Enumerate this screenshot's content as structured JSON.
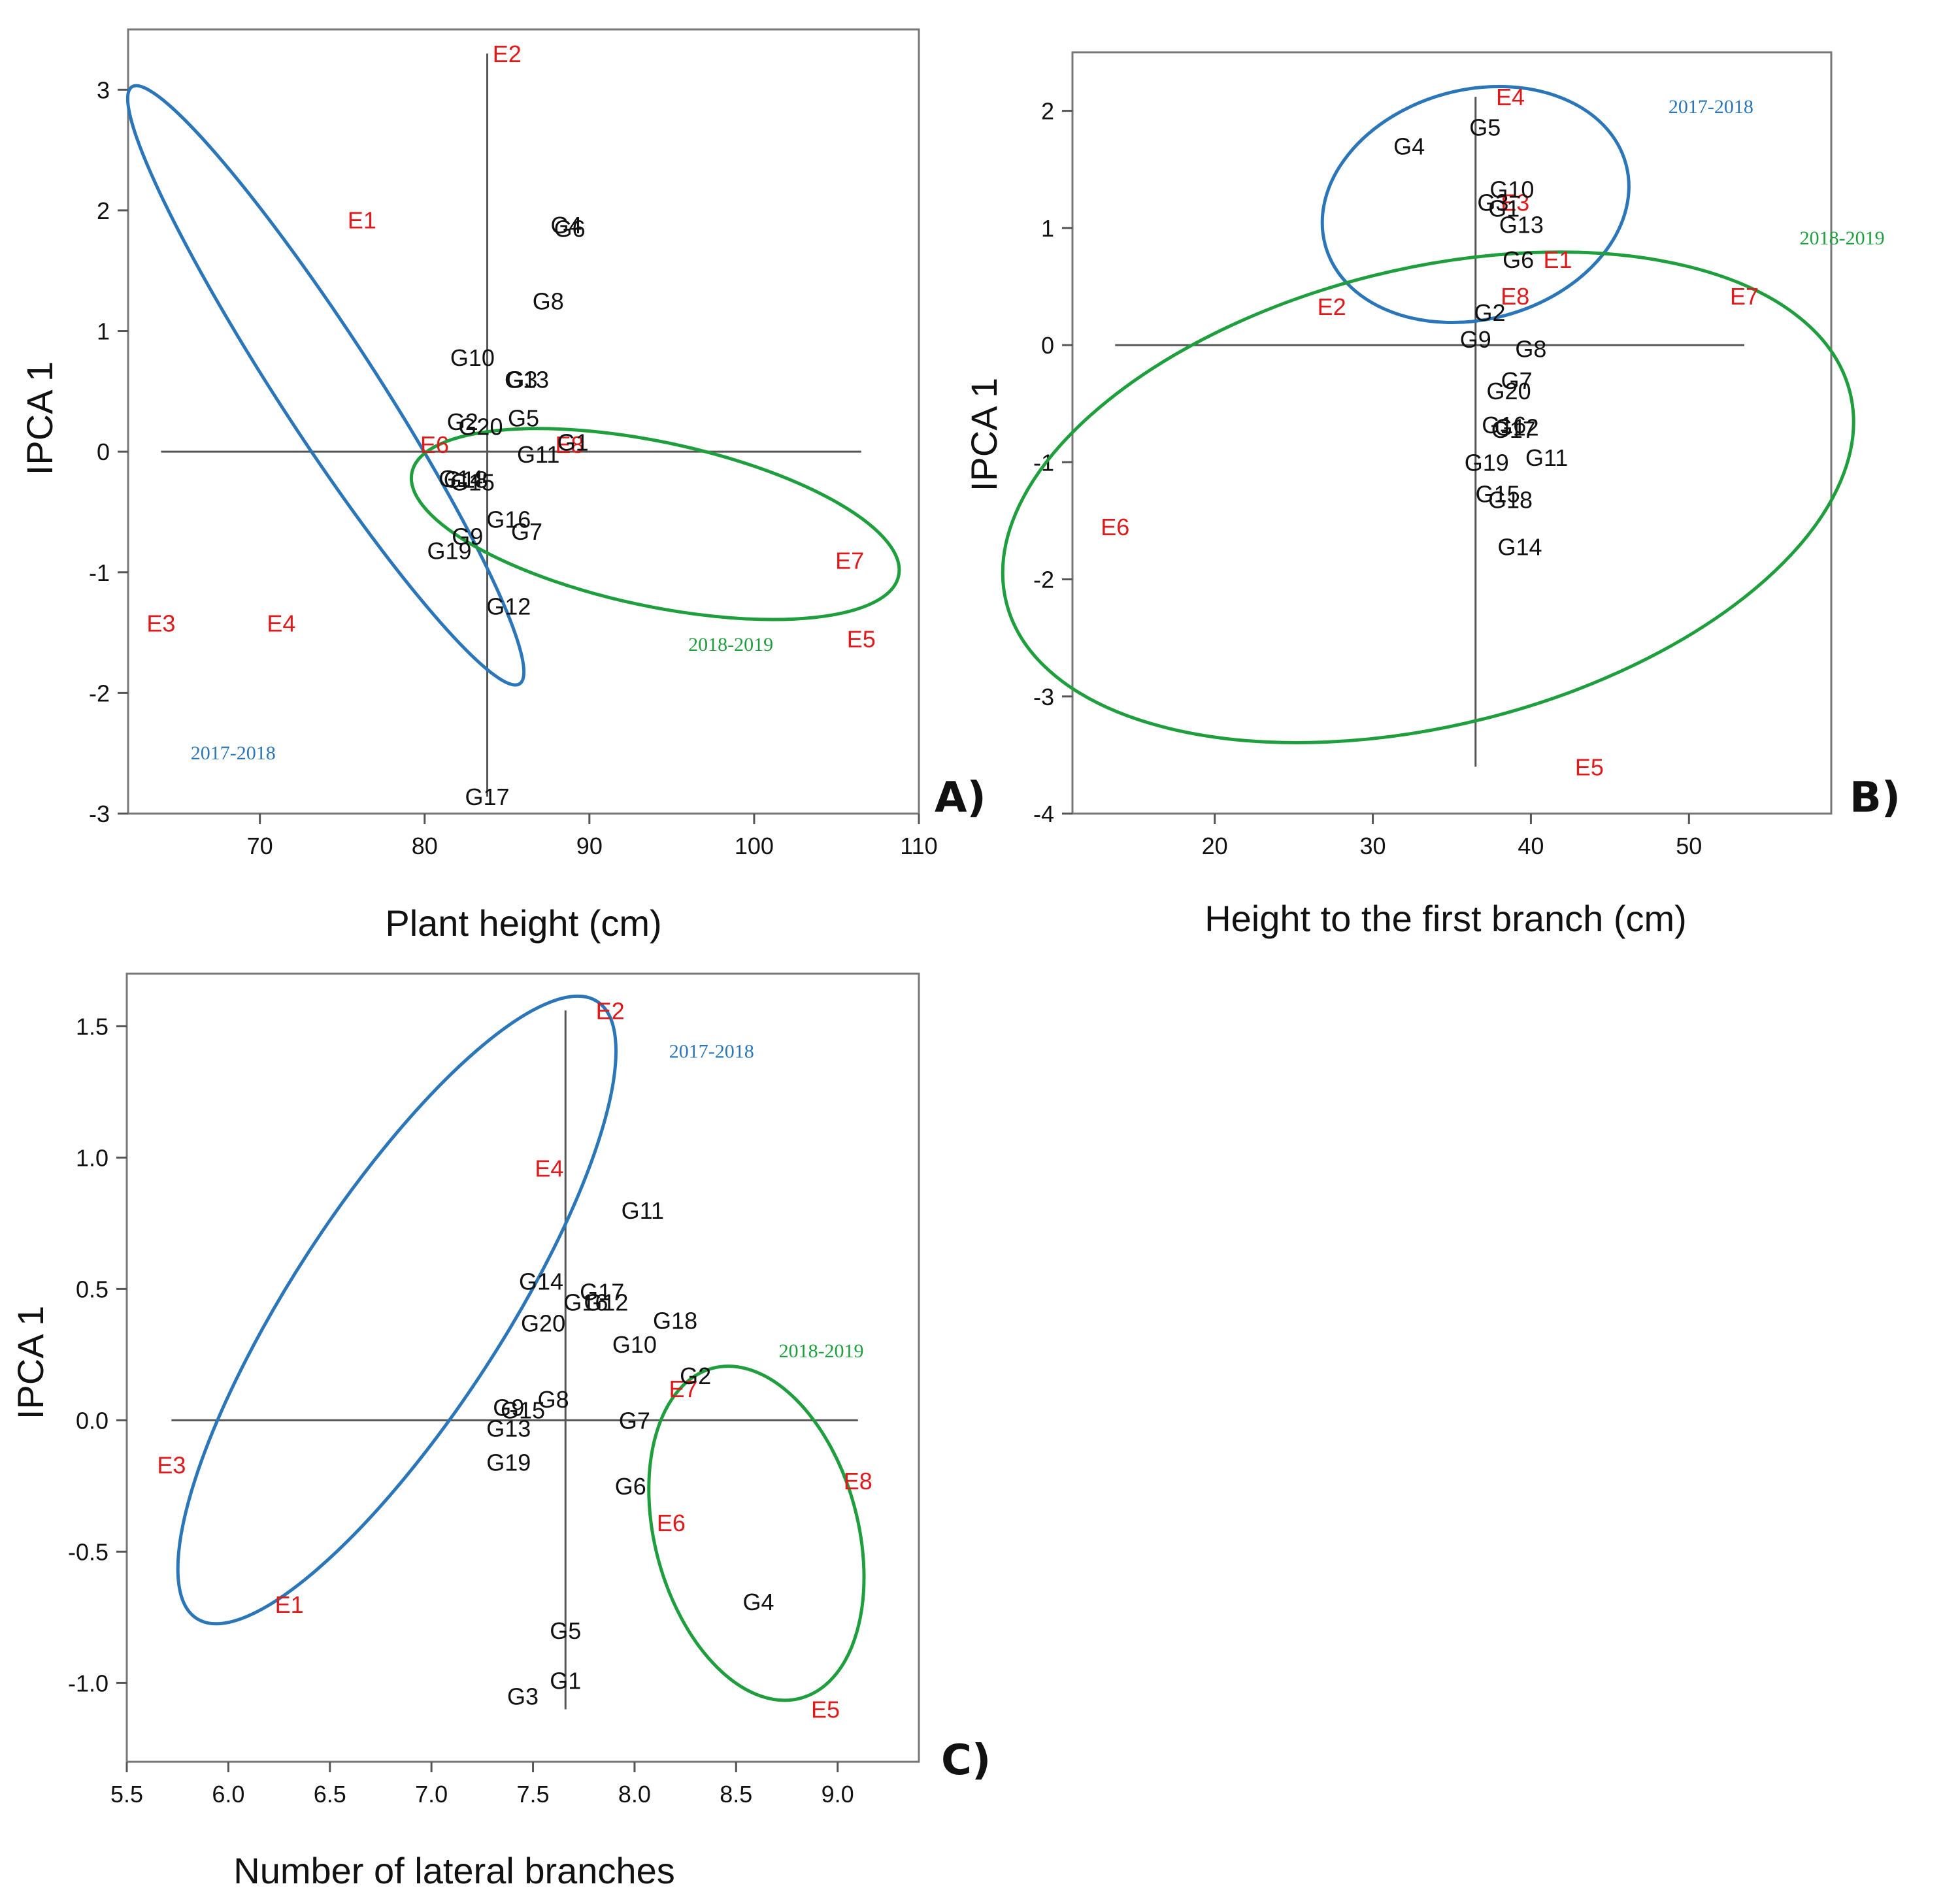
{
  "colors": {
    "genotype": "#111111",
    "environment": "#e0191b",
    "season_2017": "#2a76b8",
    "season_2018": "#1f9e3d",
    "axis": "#555555"
  },
  "chart_data": [
    {
      "panel": "A)",
      "type": "scatter",
      "xlabel": "Plant height (cm)",
      "ylabel": "IPCA 1",
      "xlim": [
        62,
        110
      ],
      "ylim": [
        -3,
        3.5
      ],
      "xticks": [
        70,
        80,
        90,
        100,
        110
      ],
      "yticks": [
        -3,
        -2,
        -1,
        0,
        1,
        2,
        3
      ],
      "reference_lines": {
        "x": 83.8,
        "y": 0
      },
      "points": [
        {
          "label": "E1",
          "x": 76.2,
          "y": 1.92,
          "group": "environment"
        },
        {
          "label": "E2",
          "x": 85.0,
          "y": 3.3,
          "group": "environment"
        },
        {
          "label": "E3",
          "x": 64.0,
          "y": -1.42,
          "group": "environment"
        },
        {
          "label": "E4",
          "x": 71.3,
          "y": -1.42,
          "group": "environment"
        },
        {
          "label": "E5",
          "x": 106.5,
          "y": -1.55,
          "group": "environment"
        },
        {
          "label": "E6",
          "x": 80.6,
          "y": 0.06,
          "group": "environment"
        },
        {
          "label": "E7",
          "x": 105.8,
          "y": -0.9,
          "group": "environment"
        },
        {
          "label": "E8",
          "x": 88.8,
          "y": 0.06,
          "group": "environment"
        },
        {
          "label": "G1",
          "x": 89.0,
          "y": 0.08,
          "group": "genotype"
        },
        {
          "label": "G2",
          "x": 82.3,
          "y": 0.25,
          "group": "genotype"
        },
        {
          "label": "G3",
          "x": 85.9,
          "y": 0.6,
          "group": "genotype"
        },
        {
          "label": "G4",
          "x": 88.6,
          "y": 1.88,
          "group": "genotype"
        },
        {
          "label": "G5",
          "x": 86.0,
          "y": 0.28,
          "group": "genotype"
        },
        {
          "label": "G6",
          "x": 88.8,
          "y": 1.85,
          "group": "genotype"
        },
        {
          "label": "G7",
          "x": 86.2,
          "y": -0.66,
          "group": "genotype"
        },
        {
          "label": "G8",
          "x": 87.5,
          "y": 1.25,
          "group": "genotype"
        },
        {
          "label": "G9",
          "x": 82.6,
          "y": -0.7,
          "group": "genotype"
        },
        {
          "label": "G10",
          "x": 82.9,
          "y": 0.78,
          "group": "genotype"
        },
        {
          "label": "G11",
          "x": 86.9,
          "y": -0.02,
          "group": "genotype"
        },
        {
          "label": "G12",
          "x": 85.1,
          "y": -1.28,
          "group": "genotype"
        },
        {
          "label": "G13",
          "x": 86.2,
          "y": 0.6,
          "group": "genotype"
        },
        {
          "label": "G14",
          "x": 82.2,
          "y": -0.22,
          "group": "genotype"
        },
        {
          "label": "G15",
          "x": 82.9,
          "y": -0.25,
          "group": "genotype"
        },
        {
          "label": "G16",
          "x": 85.1,
          "y": -0.56,
          "group": "genotype"
        },
        {
          "label": "G17",
          "x": 83.8,
          "y": -2.86,
          "group": "genotype"
        },
        {
          "label": "G18",
          "x": 82.5,
          "y": -0.23,
          "group": "genotype"
        },
        {
          "label": "G19",
          "x": 81.5,
          "y": -0.82,
          "group": "genotype"
        },
        {
          "label": "G20",
          "x": 83.4,
          "y": 0.21,
          "group": "genotype"
        }
      ],
      "ellipses": [
        {
          "label": "2017-2018",
          "color": "season_2017",
          "cx": 74.0,
          "cy": 0.55,
          "rx": 2.95,
          "ry": 2.95,
          "rotate": -33,
          "label_x": 65.8,
          "label_y": -2.55
        },
        {
          "label": "2018-2019",
          "color": "season_2018",
          "cx": 94.0,
          "cy": -0.6,
          "rx": 15.1,
          "ry": 0.68,
          "rotate": 12,
          "label_x": 96.0,
          "label_y": -1.65
        }
      ]
    },
    {
      "panel": "B)",
      "type": "scatter",
      "xlabel": "Height to the first branch (cm)",
      "ylabel": "IPCA 1",
      "xlim": [
        11,
        59
      ],
      "ylim": [
        -4,
        2.5
      ],
      "xticks": [
        20,
        30,
        40,
        50
      ],
      "yticks": [
        -4,
        -3,
        -2,
        -1,
        0,
        1,
        2
      ],
      "reference_lines": {
        "x": 36.5,
        "y": 0
      },
      "points": [
        {
          "label": "E1",
          "x": 41.7,
          "y": 0.73,
          "group": "environment"
        },
        {
          "label": "E2",
          "x": 27.4,
          "y": 0.33,
          "group": "environment"
        },
        {
          "label": "E3",
          "x": 39.0,
          "y": 1.22,
          "group": "environment"
        },
        {
          "label": "E4",
          "x": 38.7,
          "y": 2.12,
          "group": "environment"
        },
        {
          "label": "E5",
          "x": 43.7,
          "y": -3.6,
          "group": "environment"
        },
        {
          "label": "E6",
          "x": 13.7,
          "y": -1.55,
          "group": "environment"
        },
        {
          "label": "E7",
          "x": 53.5,
          "y": 0.42,
          "group": "environment"
        },
        {
          "label": "E8",
          "x": 39.0,
          "y": 0.42,
          "group": "environment"
        },
        {
          "label": "G1",
          "x": 38.3,
          "y": 1.17,
          "group": "genotype"
        },
        {
          "label": "G2",
          "x": 37.4,
          "y": 0.28,
          "group": "genotype"
        },
        {
          "label": "G3",
          "x": 37.6,
          "y": 1.22,
          "group": "genotype"
        },
        {
          "label": "G4",
          "x": 32.3,
          "y": 1.7,
          "group": "genotype"
        },
        {
          "label": "G5",
          "x": 37.1,
          "y": 1.86,
          "group": "genotype"
        },
        {
          "label": "G6",
          "x": 39.2,
          "y": 0.73,
          "group": "genotype"
        },
        {
          "label": "G7",
          "x": 39.1,
          "y": -0.3,
          "group": "genotype"
        },
        {
          "label": "G8",
          "x": 40.0,
          "y": -0.03,
          "group": "genotype"
        },
        {
          "label": "G9",
          "x": 36.5,
          "y": 0.05,
          "group": "genotype"
        },
        {
          "label": "G10",
          "x": 38.8,
          "y": 1.33,
          "group": "genotype"
        },
        {
          "label": "G11",
          "x": 41.0,
          "y": -0.96,
          "group": "genotype"
        },
        {
          "label": "G12",
          "x": 39.1,
          "y": -0.7,
          "group": "genotype"
        },
        {
          "label": "G13",
          "x": 39.4,
          "y": 1.03,
          "group": "genotype"
        },
        {
          "label": "G14",
          "x": 39.3,
          "y": -1.72,
          "group": "genotype"
        },
        {
          "label": "G15",
          "x": 37.9,
          "y": -1.27,
          "group": "genotype"
        },
        {
          "label": "G16",
          "x": 38.3,
          "y": -0.68,
          "group": "genotype"
        },
        {
          "label": "G17",
          "x": 38.9,
          "y": -0.72,
          "group": "genotype"
        },
        {
          "label": "G18",
          "x": 38.7,
          "y": -1.32,
          "group": "genotype"
        },
        {
          "label": "G19",
          "x": 37.2,
          "y": -1.0,
          "group": "genotype"
        },
        {
          "label": "G20",
          "x": 38.6,
          "y": -0.39,
          "group": "genotype"
        }
      ],
      "ellipses": [
        {
          "label": "2017-2018",
          "color": "season_2017",
          "cx": 36.5,
          "cy": 1.2,
          "rx": 9.85,
          "ry": 0.98,
          "rotate": -15,
          "label_x": 48.7,
          "label_y": 1.98
        },
        {
          "label": "2018-2019",
          "color": "season_2018",
          "cx": 33.5,
          "cy": -1.3,
          "rx": 27.5,
          "ry": 1.95,
          "rotate": -14,
          "label_x": 57.0,
          "label_y": 0.86
        }
      ]
    },
    {
      "panel": "C)",
      "type": "scatter",
      "xlabel": "Number of lateral branches",
      "ylabel": "IPCA 1",
      "xlim": [
        5.5,
        9.4
      ],
      "ylim": [
        -1.3,
        1.7
      ],
      "xticks": [
        5.5,
        6.0,
        6.5,
        7.0,
        7.5,
        8.0,
        8.5,
        9.0
      ],
      "yticks": [
        -1.0,
        -0.5,
        0.0,
        0.5,
        1.0,
        1.5
      ],
      "reference_lines": {
        "x": 7.66,
        "y": 0
      },
      "points": [
        {
          "label": "E1",
          "x": 6.3,
          "y": -0.7,
          "group": "environment"
        },
        {
          "label": "E2",
          "x": 7.88,
          "y": 1.56,
          "group": "environment"
        },
        {
          "label": "E3",
          "x": 5.72,
          "y": -0.17,
          "group": "environment"
        },
        {
          "label": "E4",
          "x": 7.58,
          "y": 0.96,
          "group": "environment"
        },
        {
          "label": "E5",
          "x": 8.94,
          "y": -1.1,
          "group": "environment"
        },
        {
          "label": "E6",
          "x": 8.18,
          "y": -0.39,
          "group": "environment"
        },
        {
          "label": "E7",
          "x": 8.24,
          "y": 0.12,
          "group": "environment"
        },
        {
          "label": "E8",
          "x": 9.1,
          "y": -0.23,
          "group": "environment"
        },
        {
          "label": "G1",
          "x": 7.66,
          "y": -0.99,
          "group": "genotype"
        },
        {
          "label": "G2",
          "x": 8.3,
          "y": 0.17,
          "group": "genotype"
        },
        {
          "label": "G3",
          "x": 7.45,
          "y": -1.05,
          "group": "genotype"
        },
        {
          "label": "G4",
          "x": 8.61,
          "y": -0.69,
          "group": "genotype"
        },
        {
          "label": "G5",
          "x": 7.66,
          "y": -0.8,
          "group": "genotype"
        },
        {
          "label": "G6",
          "x": 7.98,
          "y": -0.25,
          "group": "genotype"
        },
        {
          "label": "G7",
          "x": 8.0,
          "y": 0.0,
          "group": "genotype"
        },
        {
          "label": "G8",
          "x": 7.6,
          "y": 0.08,
          "group": "genotype"
        },
        {
          "label": "G9",
          "x": 7.38,
          "y": 0.05,
          "group": "genotype"
        },
        {
          "label": "G10",
          "x": 8.0,
          "y": 0.29,
          "group": "genotype"
        },
        {
          "label": "G11",
          "x": 8.04,
          "y": 0.8,
          "group": "genotype"
        },
        {
          "label": "G12",
          "x": 7.86,
          "y": 0.45,
          "group": "genotype"
        },
        {
          "label": "G13",
          "x": 7.38,
          "y": -0.03,
          "group": "genotype"
        },
        {
          "label": "G14",
          "x": 7.54,
          "y": 0.53,
          "group": "genotype"
        },
        {
          "label": "G15",
          "x": 7.45,
          "y": 0.04,
          "group": "genotype"
        },
        {
          "label": "G16",
          "x": 7.76,
          "y": 0.45,
          "group": "genotype"
        },
        {
          "label": "G17",
          "x": 7.84,
          "y": 0.49,
          "group": "genotype"
        },
        {
          "label": "G18",
          "x": 8.2,
          "y": 0.38,
          "group": "genotype"
        },
        {
          "label": "G19",
          "x": 7.38,
          "y": -0.16,
          "group": "genotype"
        },
        {
          "label": "G20",
          "x": 7.55,
          "y": 0.37,
          "group": "genotype"
        }
      ],
      "ellipses": [
        {
          "label": "2017-2018",
          "color": "season_2017",
          "cx": 6.83,
          "cy": 0.42,
          "rx": 0.52,
          "ry": 1.4,
          "rotate": 33,
          "label_x": 8.17,
          "label_y": 1.38
        },
        {
          "label": "2018-2019",
          "color": "season_2018",
          "cx": 8.6,
          "cy": -0.43,
          "rx": 0.5,
          "ry": 0.65,
          "rotate": -15,
          "label_x": 8.71,
          "label_y": 0.24
        }
      ]
    }
  ]
}
